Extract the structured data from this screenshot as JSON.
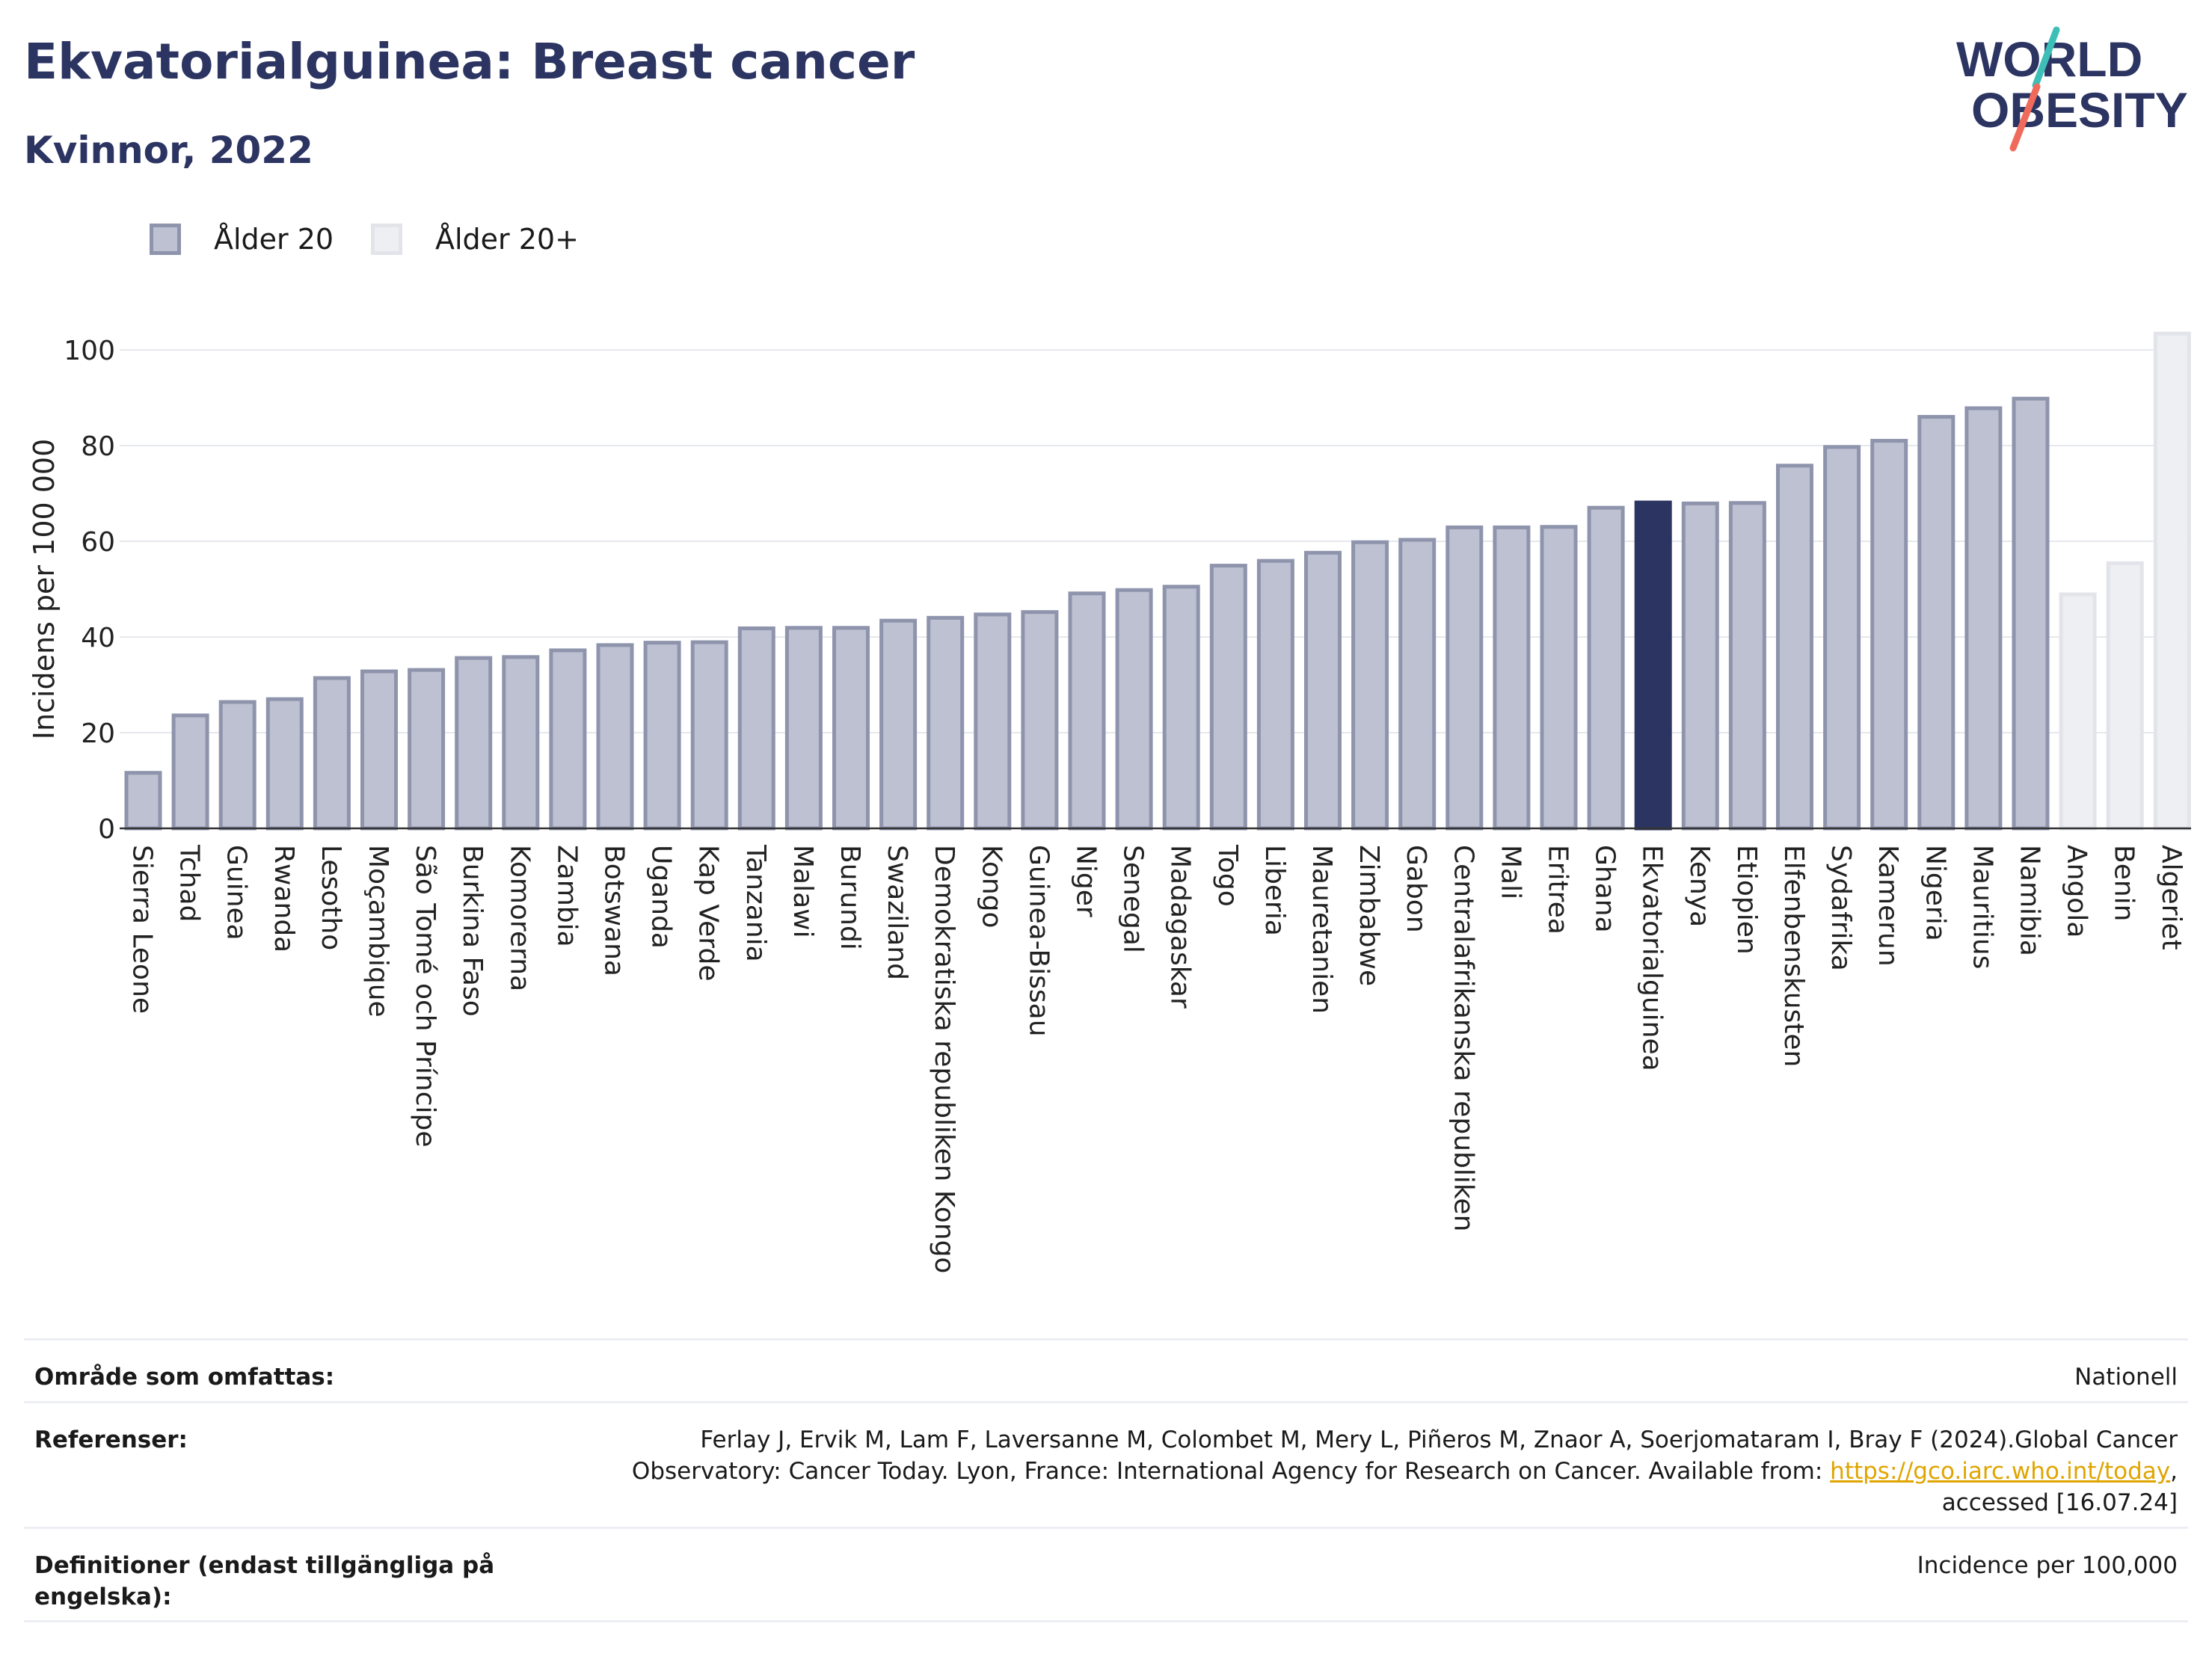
{
  "header": {
    "title": "Ekvatorialguinea: Breast cancer",
    "subtitle": "Kvinnor, 2022",
    "logo_line1": "WORLD",
    "logo_line2": "OBESITY"
  },
  "legend": {
    "primary_label": "Ålder 20",
    "comparison_label": "Ålder 20+"
  },
  "colors": {
    "bar_fill": "#bec1d1",
    "bar_stroke": "#8f94ad",
    "highlight_fill": "#2c3462",
    "comparison_fill": "#eeeff3",
    "comparison_stroke": "#e2e4ea",
    "title": "#2c3462",
    "link": "#e0a500",
    "logo_teal": "#3dbfb8",
    "logo_coral": "#f06a5c"
  },
  "chart_data": {
    "type": "bar",
    "ylabel": "Incidens per 100 000",
    "xlabel": "",
    "ylim": [
      0,
      105
    ],
    "yticks": [
      0,
      20,
      40,
      60,
      80,
      100
    ],
    "grid": "horizontal",
    "highlight": "Ekvatorialguinea",
    "legend_position": "top-left",
    "categories": [
      "Sierra Leone",
      "Tchad",
      "Guinea",
      "Rwanda",
      "Lesotho",
      "Moçambique",
      "São Tomé och Príncipe",
      "Burkina Faso",
      "Komorerna",
      "Zambia",
      "Botswana",
      "Uganda",
      "Kap Verde",
      "Tanzania",
      "Malawi",
      "Burundi",
      "Swaziland",
      "Demokratiska republiken Kongo",
      "Kongo",
      "Guinea-Bissau",
      "Niger",
      "Senegal",
      "Madagaskar",
      "Togo",
      "Liberia",
      "Mauretanien",
      "Zimbabwe",
      "Gabon",
      "Centralafrikanska republiken",
      "Mali",
      "Eritrea",
      "Ghana",
      "Ekvatorialguinea",
      "Kenya",
      "Etiopien",
      "Elfenbenskusten",
      "Sydafrika",
      "Kamerun",
      "Nigeria",
      "Mauritius",
      "Namibia",
      "Angola",
      "Benin",
      "Algeriet"
    ],
    "values": [
      12,
      24,
      26.8,
      27.4,
      31.8,
      33.2,
      33.5,
      36,
      36.2,
      37.6,
      38.7,
      39.2,
      39.3,
      42.2,
      42.3,
      42.3,
      43.8,
      44.4,
      45.1,
      45.6,
      49.5,
      50.2,
      50.9,
      55.3,
      56.3,
      58,
      60.2,
      60.7,
      63.3,
      63.3,
      63.4,
      67.4,
      68.5,
      68.3,
      68.4,
      76.2,
      80.1,
      81.4,
      86.4,
      88.2,
      90.2,
      49.3,
      55.8,
      103.8
    ],
    "series_by_bar": [
      "Ålder 20",
      "Ålder 20",
      "Ålder 20",
      "Ålder 20",
      "Ålder 20",
      "Ålder 20",
      "Ålder 20",
      "Ålder 20",
      "Ålder 20",
      "Ålder 20",
      "Ålder 20",
      "Ålder 20",
      "Ålder 20",
      "Ålder 20",
      "Ålder 20",
      "Ålder 20",
      "Ålder 20",
      "Ålder 20",
      "Ålder 20",
      "Ålder 20",
      "Ålder 20",
      "Ålder 20",
      "Ålder 20",
      "Ålder 20",
      "Ålder 20",
      "Ålder 20",
      "Ålder 20",
      "Ålder 20",
      "Ålder 20",
      "Ålder 20",
      "Ålder 20",
      "Ålder 20",
      "Ålder 20",
      "Ålder 20",
      "Ålder 20",
      "Ålder 20",
      "Ålder 20",
      "Ålder 20",
      "Ålder 20",
      "Ålder 20",
      "Ålder 20",
      "Ålder 20+",
      "Ålder 20+",
      "Ålder 20+"
    ]
  },
  "info": {
    "coverage_label": "Område som omfattas:",
    "coverage_value": "Nationell",
    "references_label": "Referenser:",
    "references_text": "Ferlay J, Ervik M, Lam F, Laversanne M, Colombet M, Mery L, Piñeros M, Znaor A, Soerjomataram I, Bray F (2024).Global Cancer Observatory: Cancer Today. Lyon, France: International Agency for Research on Cancer. Available from: ",
    "references_link": "https://gco.iarc.who.int/today",
    "references_suffix": ", accessed [16.07.24]",
    "definitions_label": "Definitioner (endast tillgängliga på engelska):",
    "definitions_value": "Incidence per 100,000"
  }
}
